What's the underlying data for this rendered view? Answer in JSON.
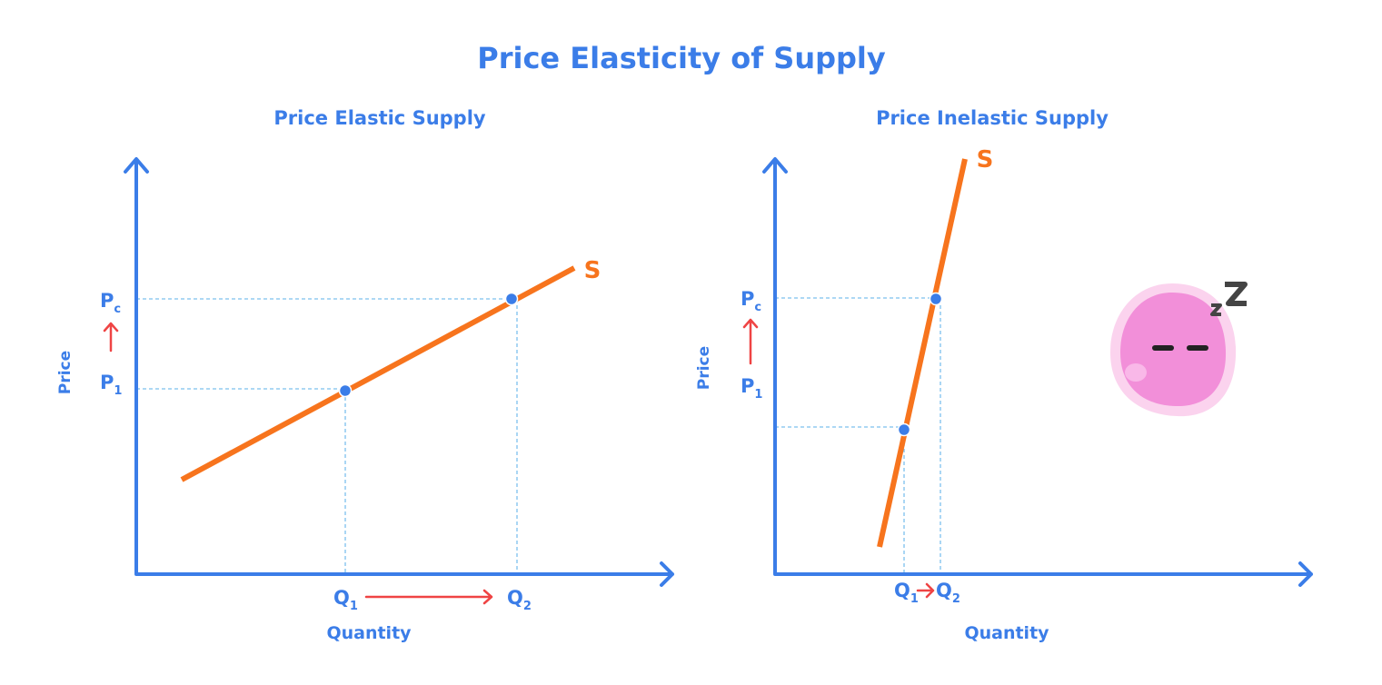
{
  "title": "Price Elasticity of Supply",
  "panels": [
    {
      "title": "Price Elastic Supply",
      "y_label": "Price",
      "x_label": "Quantity",
      "curve_label": "S",
      "price_labels": [
        {
          "main": "P",
          "sub": "c"
        },
        {
          "main": "P",
          "sub": "1"
        }
      ],
      "quantity_labels": [
        {
          "main": "Q",
          "sub": "1"
        },
        {
          "main": "Q",
          "sub": "2"
        }
      ]
    },
    {
      "title": "Price Inelastic Supply",
      "y_label": "Price",
      "x_label": "Quantity",
      "curve_label": "S",
      "price_labels": [
        {
          "main": "P",
          "sub": "c"
        },
        {
          "main": "P",
          "sub": "1"
        }
      ],
      "quantity_labels": [
        {
          "main": "Q",
          "sub": "1"
        },
        {
          "main": "Q",
          "sub": "2"
        }
      ]
    }
  ]
}
